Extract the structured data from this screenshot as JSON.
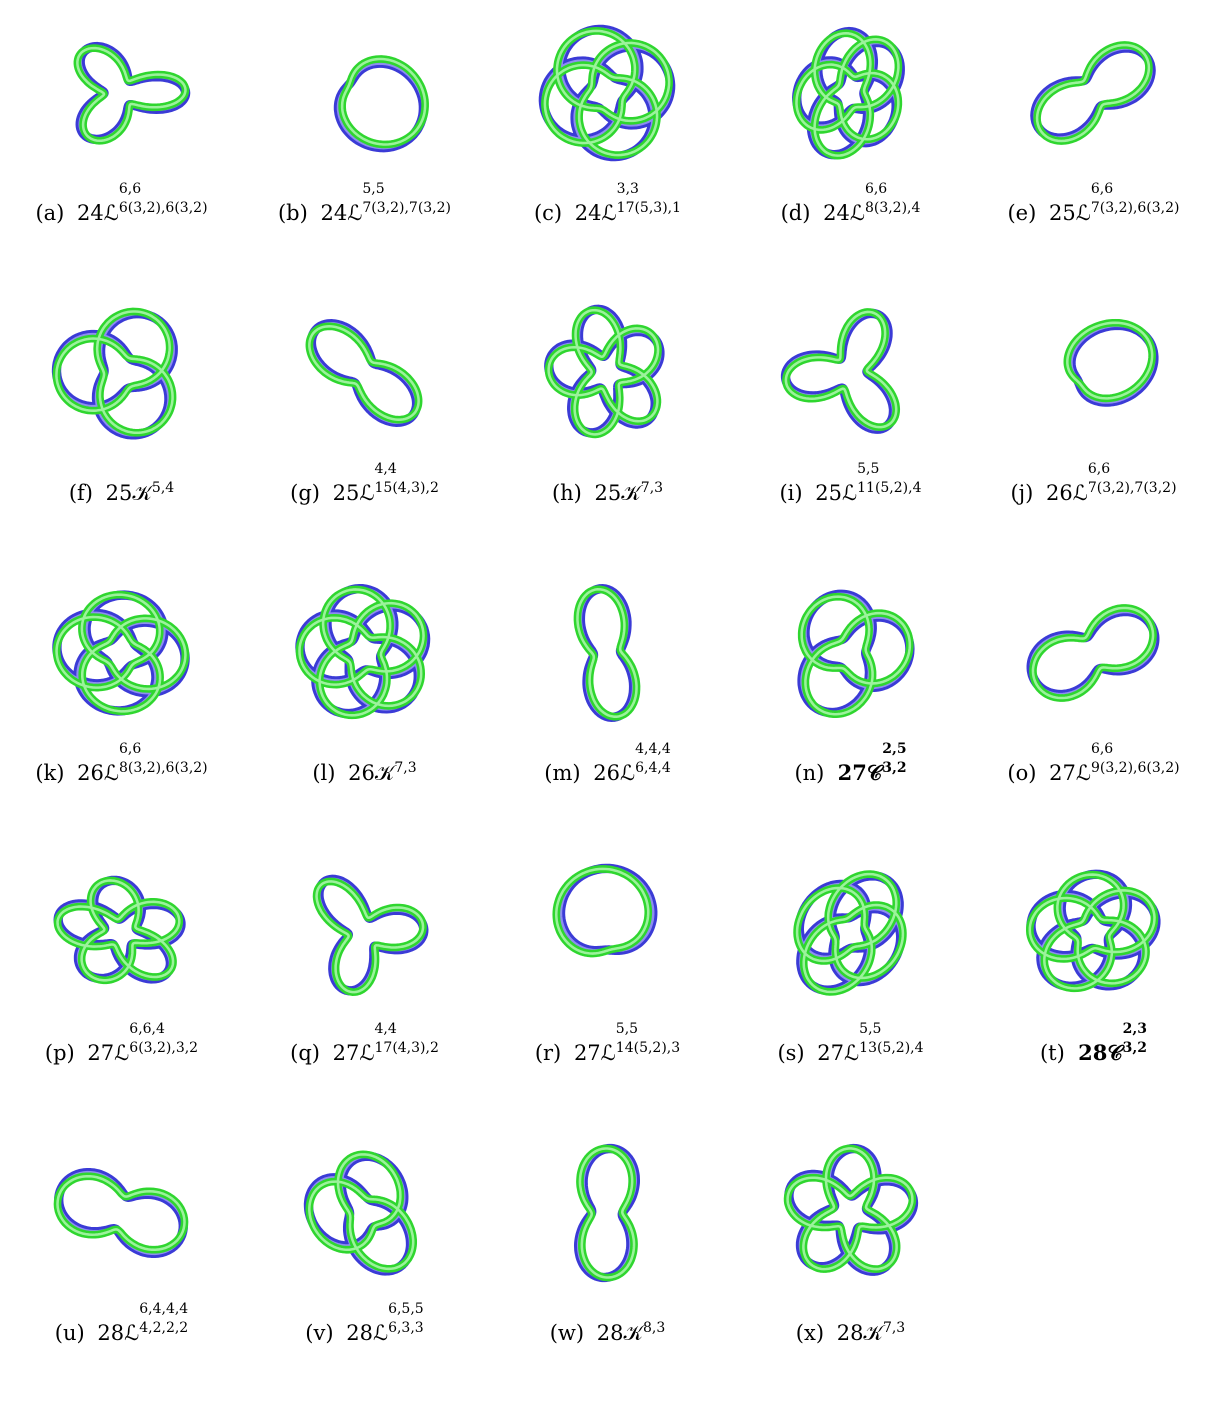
{
  "colors": {
    "blue": "#3b3bd6",
    "blue_light": "#8e8ef0",
    "green": "#2fd62f",
    "green_light": "#9cf29c"
  },
  "figures": [
    {
      "label": "(a)",
      "base": "24ℒ",
      "sup": "6,6",
      "sub": "6(3,2),6(3,2)",
      "bold": false
    },
    {
      "label": "(b)",
      "base": "24ℒ",
      "sup": "5,5",
      "sub": "7(3,2),7(3,2)",
      "bold": false
    },
    {
      "label": "(c)",
      "base": "24ℒ",
      "sup": "3,3",
      "sub": "17(5,3),1",
      "bold": false
    },
    {
      "label": "(d)",
      "base": "24ℒ",
      "sup": "6,6",
      "sub": "8(3,2),4",
      "bold": false
    },
    {
      "label": "(e)",
      "base": "25ℒ",
      "sup": "6,6",
      "sub": "7(3,2),6(3,2)",
      "bold": false
    },
    {
      "label": "(f)",
      "base": "25𝒦",
      "sup": "",
      "sub": "5,4",
      "bold": false
    },
    {
      "label": "(g)",
      "base": "25ℒ",
      "sup": "4,4",
      "sub": "15(4,3),2",
      "bold": false
    },
    {
      "label": "(h)",
      "base": "25𝒦",
      "sup": "",
      "sub": "7,3",
      "bold": false
    },
    {
      "label": "(i)",
      "base": "25ℒ",
      "sup": "5,5",
      "sub": "11(5,2),4",
      "bold": false
    },
    {
      "label": "(j)",
      "base": "26ℒ",
      "sup": "6,6",
      "sub": "7(3,2),7(3,2)",
      "bold": false
    },
    {
      "label": "(k)",
      "base": "26ℒ",
      "sup": "6,6",
      "sub": "8(3,2),6(3,2)",
      "bold": false
    },
    {
      "label": "(l)",
      "base": "26𝒦",
      "sup": "",
      "sub": "7,3",
      "bold": false
    },
    {
      "label": "(m)",
      "base": "26ℒ",
      "sup": "4,4,4",
      "sub": "6,4,4",
      "bold": false
    },
    {
      "label": "(n)",
      "base": "27𝒞",
      "sup": "2,5",
      "sub": "3,2",
      "bold": true
    },
    {
      "label": "(o)",
      "base": "27ℒ",
      "sup": "6,6",
      "sub": "9(3,2),6(3,2)",
      "bold": false
    },
    {
      "label": "(p)",
      "base": "27ℒ",
      "sup": "6,6,4",
      "sub": "6(3,2),3,2",
      "bold": false
    },
    {
      "label": "(q)",
      "base": "27ℒ",
      "sup": "4,4",
      "sub": "17(4,3),2",
      "bold": false
    },
    {
      "label": "(r)",
      "base": "27ℒ",
      "sup": "5,5",
      "sub": "14(5,2),3",
      "bold": false
    },
    {
      "label": "(s)",
      "base": "27ℒ",
      "sup": "5,5",
      "sub": "13(5,2),4",
      "bold": false
    },
    {
      "label": "(t)",
      "base": "28𝒞",
      "sup": "2,3",
      "sub": "3,2",
      "bold": true
    },
    {
      "label": "(u)",
      "base": "28ℒ",
      "sup": "6,4,4,4",
      "sub": "4,2,2,2",
      "bold": false
    },
    {
      "label": "(v)",
      "base": "28ℒ",
      "sup": "6,5,5",
      "sub": "6,3,3",
      "bold": false
    },
    {
      "label": "(w)",
      "base": "28𝒦",
      "sup": "",
      "sub": "8,3",
      "bold": false
    },
    {
      "label": "(x)",
      "base": "28𝒦",
      "sup": "",
      "sub": "7,3",
      "bold": false
    }
  ]
}
